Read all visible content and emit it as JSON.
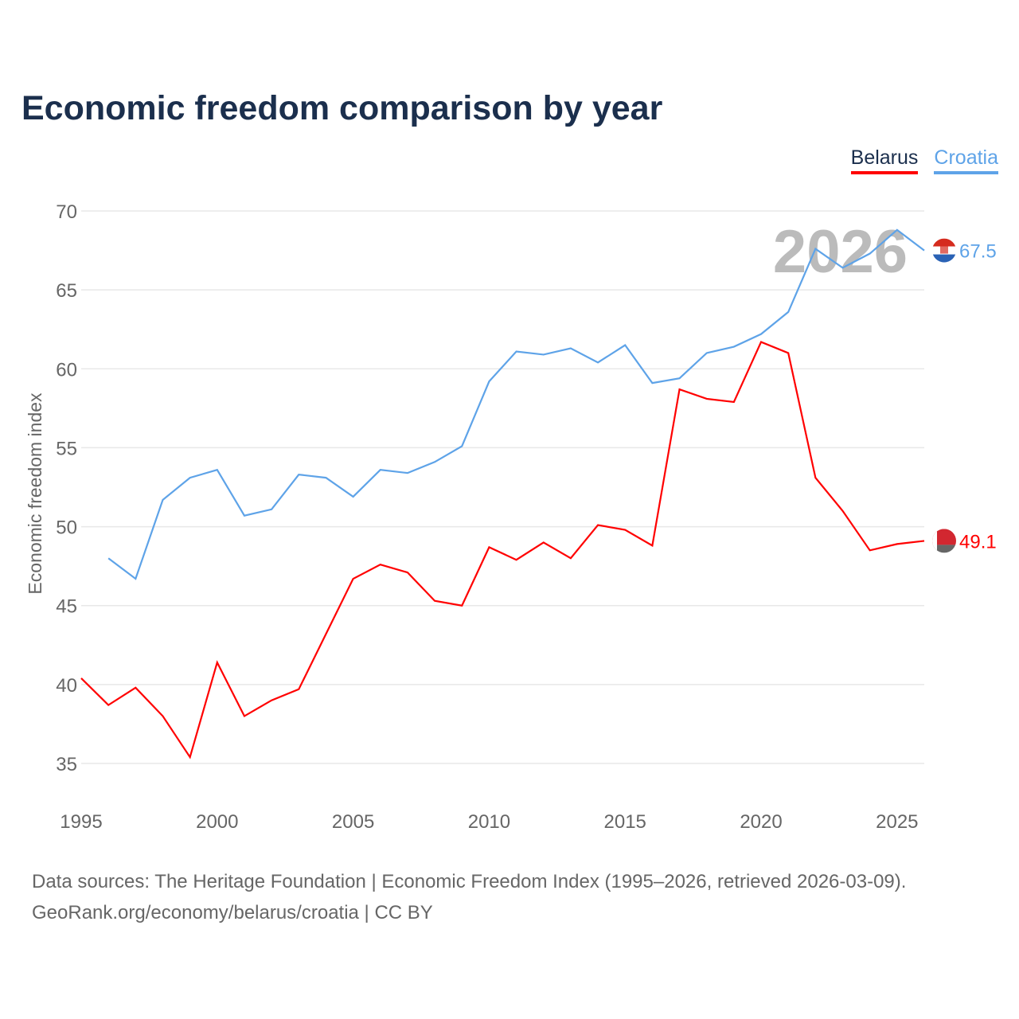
{
  "title": "Economic freedom comparison by year",
  "footer": {
    "line1": "Data sources: The Heritage Foundation | Economic Freedom Index (1995–2026, retrieved 2026-03-09).",
    "line2": "GeoRank.org/economy/belarus/croatia | CC BY"
  },
  "chart_data": {
    "type": "line",
    "title": "Economic freedom comparison by year",
    "xlabel": "",
    "ylabel": "Economic freedom index",
    "xlim": [
      1995,
      2026
    ],
    "ylim": [
      35,
      70
    ],
    "xticks": [
      1995,
      2000,
      2005,
      2010,
      2015,
      2020,
      2025
    ],
    "yticks": [
      35,
      40,
      45,
      50,
      55,
      60,
      65,
      70
    ],
    "grid": true,
    "legend_position": "top-right",
    "watermark_year": "2026",
    "series": [
      {
        "name": "Belarus",
        "color": "#ff0000",
        "end_label": "49.1",
        "flag": "belarus-flag",
        "x": [
          1995,
          1996,
          1997,
          1998,
          1999,
          2000,
          2001,
          2002,
          2003,
          2004,
          2005,
          2006,
          2007,
          2008,
          2009,
          2010,
          2011,
          2012,
          2013,
          2014,
          2015,
          2016,
          2017,
          2018,
          2019,
          2020,
          2021,
          2022,
          2023,
          2024,
          2025,
          2026
        ],
        "values": [
          40.4,
          38.7,
          39.8,
          38.0,
          35.4,
          41.4,
          38.0,
          39.0,
          39.7,
          43.2,
          46.7,
          47.6,
          47.1,
          45.3,
          45.0,
          48.7,
          47.9,
          49.0,
          48.0,
          50.1,
          49.8,
          48.8,
          58.7,
          58.1,
          57.9,
          61.7,
          61.0,
          53.1,
          51.0,
          48.5,
          48.9,
          49.1
        ]
      },
      {
        "name": "Croatia",
        "color": "#5ea3e8",
        "end_label": "67.5",
        "flag": "croatia-flag",
        "x": [
          1996,
          1997,
          1998,
          1999,
          2000,
          2001,
          2002,
          2003,
          2004,
          2005,
          2006,
          2007,
          2008,
          2009,
          2010,
          2011,
          2012,
          2013,
          2014,
          2015,
          2016,
          2017,
          2018,
          2019,
          2020,
          2021,
          2022,
          2023,
          2024,
          2025,
          2026
        ],
        "values": [
          48.0,
          46.7,
          51.7,
          53.1,
          53.6,
          50.7,
          51.1,
          53.3,
          53.1,
          51.9,
          53.6,
          53.4,
          54.1,
          55.1,
          59.2,
          61.1,
          60.9,
          61.3,
          60.4,
          61.5,
          59.1,
          59.4,
          61.0,
          61.4,
          62.2,
          63.6,
          67.6,
          66.4,
          67.3,
          68.8,
          67.5
        ]
      }
    ]
  }
}
